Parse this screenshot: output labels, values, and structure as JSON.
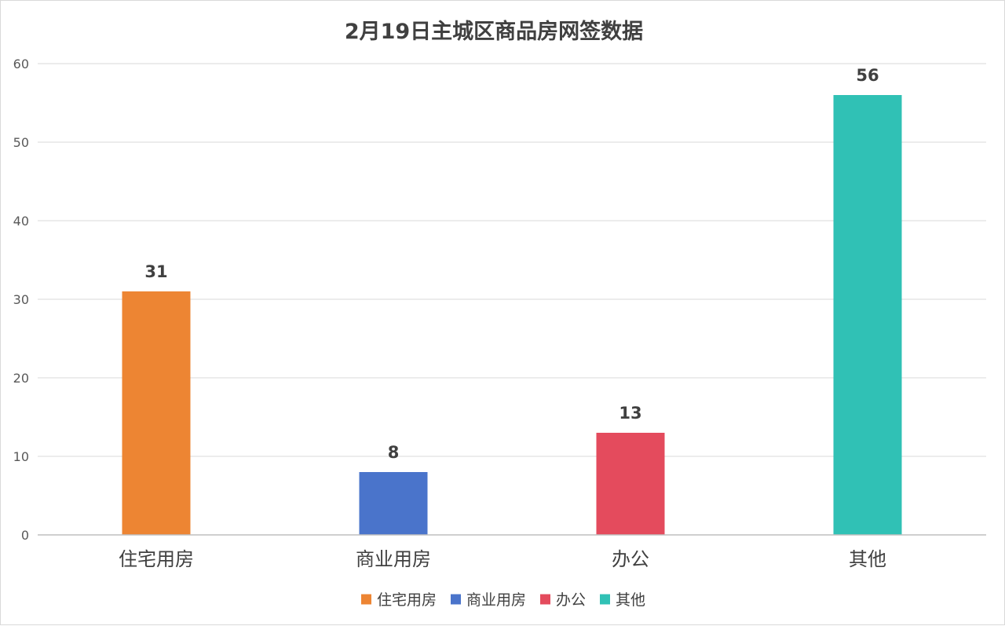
{
  "chart_data": {
    "type": "bar",
    "title": "2月19日主城区商品房网签数据",
    "categories": [
      "住宅用房",
      "商业用房",
      "办公",
      "其他"
    ],
    "values": [
      31,
      8,
      13,
      56
    ],
    "colors": [
      "#ed8533",
      "#4a74cb",
      "#e44b5d",
      "#30c1b5"
    ],
    "ylim": [
      0,
      60
    ],
    "yticks": [
      0,
      10,
      20,
      30,
      40,
      50,
      60
    ],
    "grid": true,
    "data_labels": true,
    "legend": {
      "position": "bottom",
      "entries": [
        "住宅用房",
        "商业用房",
        "办公",
        "其他"
      ]
    }
  }
}
